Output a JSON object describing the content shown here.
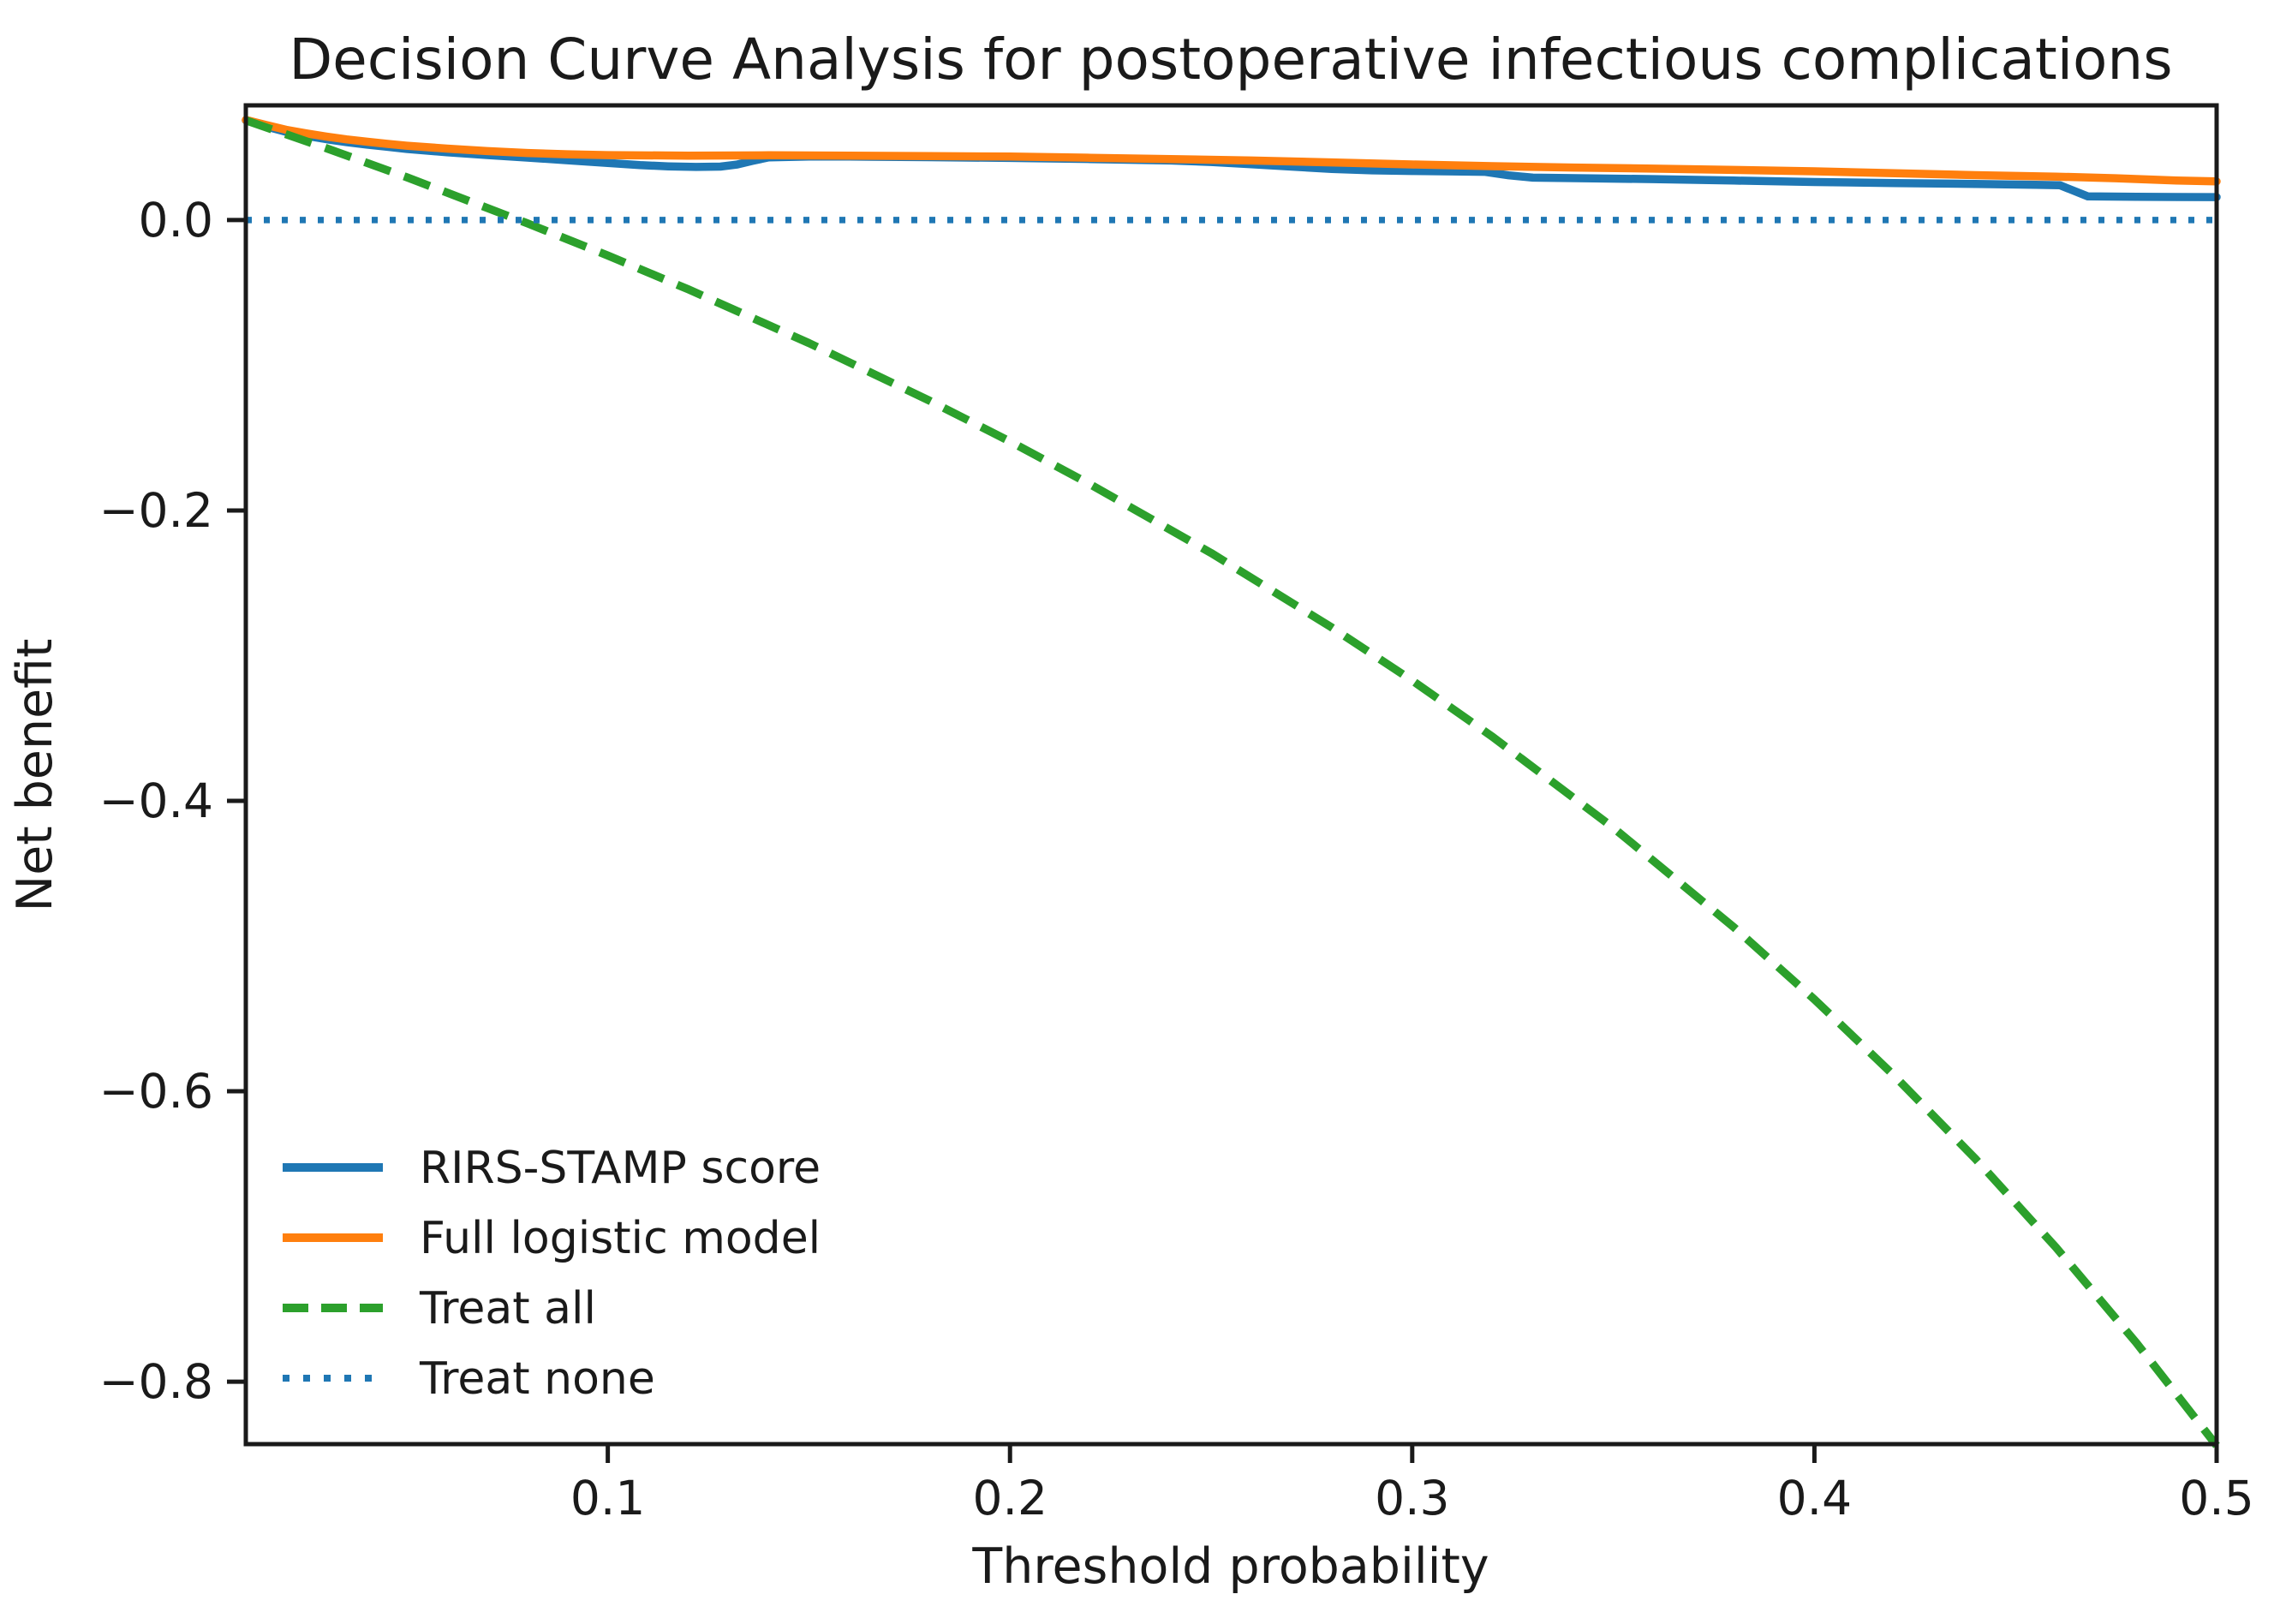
{
  "chart_data": {
    "type": "line",
    "title": "Decision Curve Analysis for postoperative infectious complications",
    "xlabel": "Threshold probability",
    "ylabel": "Net benefit",
    "xlim": [
      0.01,
      0.5
    ],
    "ylim": [
      -0.843,
      0.079
    ],
    "grid": false,
    "legend_position": "lower-left",
    "x_ticks": [
      0.1,
      0.2,
      0.3,
      0.4,
      0.5
    ],
    "x_tick_labels": [
      "0.1",
      "0.2",
      "0.3",
      "0.4",
      "0.5"
    ],
    "y_ticks": [
      0.0,
      -0.2,
      -0.4,
      -0.6,
      -0.8
    ],
    "y_tick_labels": [
      "0.0",
      "−0.2",
      "−0.4",
      "−0.6",
      "−0.8"
    ],
    "series": [
      {
        "name": "RIRS-STAMP score",
        "color": "#1f77b4",
        "style": "solid",
        "x": [
          0.01,
          0.015,
          0.02,
          0.025,
          0.03,
          0.035,
          0.04,
          0.045,
          0.05,
          0.06,
          0.07,
          0.08,
          0.09,
          0.1,
          0.108,
          0.115,
          0.122,
          0.128,
          0.132,
          0.136,
          0.14,
          0.15,
          0.16,
          0.18,
          0.2,
          0.22,
          0.24,
          0.25,
          0.26,
          0.27,
          0.28,
          0.29,
          0.3,
          0.31,
          0.318,
          0.324,
          0.33,
          0.345,
          0.36,
          0.38,
          0.4,
          0.42,
          0.44,
          0.455,
          0.461,
          0.468,
          0.48,
          0.49,
          0.5
        ],
        "y": [
          0.0687,
          0.0645,
          0.0608,
          0.058,
          0.0557,
          0.0537,
          0.052,
          0.0505,
          0.049,
          0.0467,
          0.0448,
          0.043,
          0.0412,
          0.0393,
          0.0378,
          0.037,
          0.0366,
          0.0368,
          0.0382,
          0.0408,
          0.0432,
          0.0438,
          0.0437,
          0.0433,
          0.0428,
          0.042,
          0.041,
          0.04,
          0.0385,
          0.0368,
          0.0352,
          0.0342,
          0.0338,
          0.0335,
          0.0332,
          0.0308,
          0.0292,
          0.0287,
          0.0282,
          0.0272,
          0.0262,
          0.0255,
          0.0249,
          0.0243,
          0.024,
          0.0163,
          0.016,
          0.0159,
          0.0158
        ]
      },
      {
        "name": "Full logistic model",
        "color": "#ff7f0e",
        "style": "solid",
        "x": [
          0.01,
          0.015,
          0.02,
          0.025,
          0.03,
          0.035,
          0.04,
          0.045,
          0.05,
          0.06,
          0.07,
          0.08,
          0.09,
          0.1,
          0.12,
          0.14,
          0.16,
          0.18,
          0.2,
          0.22,
          0.24,
          0.26,
          0.28,
          0.3,
          0.32,
          0.34,
          0.36,
          0.38,
          0.4,
          0.42,
          0.44,
          0.46,
          0.475,
          0.49,
          0.5
        ],
        "y": [
          0.069,
          0.0655,
          0.0622,
          0.0597,
          0.0575,
          0.0556,
          0.054,
          0.0525,
          0.0512,
          0.0492,
          0.0475,
          0.0462,
          0.0453,
          0.0447,
          0.0444,
          0.0446,
          0.0444,
          0.0441,
          0.0437,
          0.0429,
          0.042,
          0.041,
          0.0397,
          0.0383,
          0.0371,
          0.0362,
          0.0354,
          0.0345,
          0.0336,
          0.0323,
          0.0309,
          0.0299,
          0.0288,
          0.0272,
          0.0266
        ]
      },
      {
        "name": "Treat all",
        "color": "#2ca02c",
        "style": "dashed",
        "x": [
          0.01,
          0.03,
          0.05,
          0.08,
          0.1,
          0.12,
          0.15,
          0.18,
          0.2,
          0.22,
          0.25,
          0.28,
          0.3,
          0.32,
          0.35,
          0.38,
          0.4,
          0.42,
          0.44,
          0.46,
          0.48,
          0.5
        ],
        "y": [
          0.0687,
          0.0495,
          0.0295,
          -0.0022,
          -0.0244,
          -0.0477,
          -0.0847,
          -0.1244,
          -0.1525,
          -0.1821,
          -0.2293,
          -0.2806,
          -0.3171,
          -0.3559,
          -0.4185,
          -0.4871,
          -0.5367,
          -0.5897,
          -0.6464,
          -0.7074,
          -0.7731,
          -0.844
        ]
      },
      {
        "name": "Treat none",
        "color": "#1f77b4",
        "style": "dotted",
        "x": [
          0.01,
          0.5
        ],
        "y": [
          0.0,
          0.0
        ]
      }
    ]
  }
}
